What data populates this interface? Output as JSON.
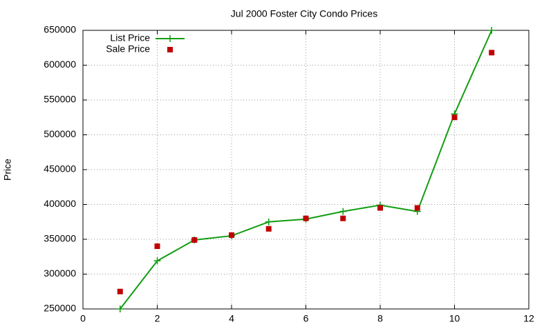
{
  "chart_data": {
    "type": "line",
    "title": "Jul 2000 Foster City Condo Prices",
    "ylabel": "Price",
    "x": [
      1,
      2,
      3,
      4,
      5,
      6,
      7,
      8,
      9,
      10,
      11
    ],
    "series": [
      {
        "name": "List Price",
        "color": "#109c10",
        "mode": "linespoints",
        "values": [
          250000,
          319000,
          349000,
          355000,
          375000,
          379000,
          390000,
          399000,
          390000,
          530000,
          650000
        ]
      },
      {
        "name": "Sale Price",
        "color": "#c00000",
        "mode": "points",
        "values": [
          275000,
          340000,
          349000,
          356000,
          365000,
          380000,
          380000,
          395000,
          395000,
          525000,
          618000
        ]
      }
    ],
    "xlim": [
      0,
      12
    ],
    "xticks": [
      0,
      2,
      4,
      6,
      8,
      10,
      12
    ],
    "ylim": [
      250000,
      650000
    ],
    "yticks": [
      250000,
      300000,
      350000,
      400000,
      450000,
      500000,
      550000,
      600000,
      650000
    ],
    "grid": true,
    "legend": "top-left"
  }
}
